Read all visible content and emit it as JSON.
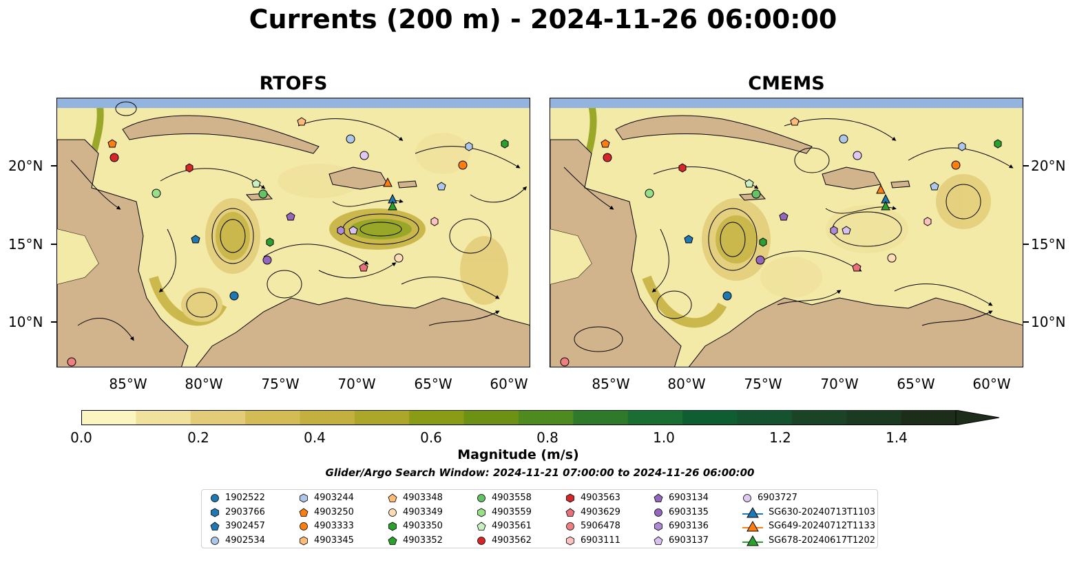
{
  "title": "Currents (200 m) - 2024-11-26 06:00:00",
  "panels": [
    {
      "title": "RTOFS"
    },
    {
      "title": "CMEMS"
    }
  ],
  "axes": {
    "lat_ticks": [
      "20°N",
      "15°N",
      "10°N"
    ],
    "lon_ticks": [
      "85°W",
      "80°W",
      "75°W",
      "70°W",
      "65°W",
      "60°W"
    ]
  },
  "colorbar": {
    "label": "Magnitude (m/s)",
    "ticks": [
      "0.0",
      "0.2",
      "0.4",
      "0.6",
      "0.8",
      "1.0",
      "1.2",
      "1.4"
    ],
    "range": [
      0,
      1.5
    ],
    "extend": "max",
    "colors": [
      "#fbf6c0",
      "#f0e29d",
      "#e2cc77",
      "#d4bc55",
      "#c4b03e",
      "#aca629",
      "#8a9c13",
      "#6d9213",
      "#4e8a1e",
      "#2f7a2a",
      "#1a6d33",
      "#0f5e31",
      "#145230",
      "#1b4427",
      "#1c3a21",
      "#1c2e19"
    ]
  },
  "search_window": "Glider/Argo Search Window: 2024-11-21 07:00:00 to 2024-11-26 06:00:00",
  "colors": {
    "land": "#d2b48c",
    "water": "#94b4e0"
  },
  "legend": [
    {
      "label": "1902522",
      "marker": "circle",
      "color": "#1f77b4"
    },
    {
      "label": "2903766",
      "marker": "hexagon",
      "color": "#1f77b4"
    },
    {
      "label": "3902457",
      "marker": "pentagon",
      "color": "#1f77b4"
    },
    {
      "label": "4902534",
      "marker": "circle",
      "color": "#aec7e8"
    },
    {
      "label": "4903244",
      "marker": "hexagon",
      "color": "#aec7e8"
    },
    {
      "label": "4903250",
      "marker": "pentagon",
      "color": "#ff7f0e"
    },
    {
      "label": "4903333",
      "marker": "circle",
      "color": "#ff7f0e"
    },
    {
      "label": "4903345",
      "marker": "hexagon",
      "color": "#ffbb78"
    },
    {
      "label": "4903348",
      "marker": "pentagon",
      "color": "#ffbb78"
    },
    {
      "label": "4903349",
      "marker": "circle",
      "color": "#ffdcb8"
    },
    {
      "label": "4903350",
      "marker": "hexagon",
      "color": "#2ca02c"
    },
    {
      "label": "4903352",
      "marker": "pentagon",
      "color": "#2ca02c"
    },
    {
      "label": "4903558",
      "marker": "circle",
      "color": "#66c266"
    },
    {
      "label": "4903559",
      "marker": "hexagon",
      "color": "#98df8a"
    },
    {
      "label": "4903561",
      "marker": "pentagon",
      "color": "#c8f0c0"
    },
    {
      "label": "4903562",
      "marker": "circle",
      "color": "#d62728"
    },
    {
      "label": "4903563",
      "marker": "hexagon",
      "color": "#d62728"
    },
    {
      "label": "4903629",
      "marker": "pentagon",
      "color": "#e8707a"
    },
    {
      "label": "5906478",
      "marker": "circle",
      "color": "#f08080"
    },
    {
      "label": "6903111",
      "marker": "hexagon",
      "color": "#ffc0c0"
    },
    {
      "label": "6903134",
      "marker": "pentagon",
      "color": "#9467bd"
    },
    {
      "label": "6903135",
      "marker": "circle",
      "color": "#9467bd"
    },
    {
      "label": "6903136",
      "marker": "hexagon",
      "color": "#b08ad6"
    },
    {
      "label": "6903137",
      "marker": "pentagon",
      "color": "#d8c0f0"
    },
    {
      "label": "6903727",
      "marker": "circle",
      "color": "#e0c8f5"
    },
    {
      "label": "SG630-20240713T1103",
      "marker": "triangle",
      "color": "#1f77b4"
    },
    {
      "label": "SG649-20240712T1133",
      "marker": "triangle",
      "color": "#ff7f0e"
    },
    {
      "label": "SG678-20240617T1202",
      "marker": "triangle",
      "color": "#2ca02c"
    }
  ]
}
